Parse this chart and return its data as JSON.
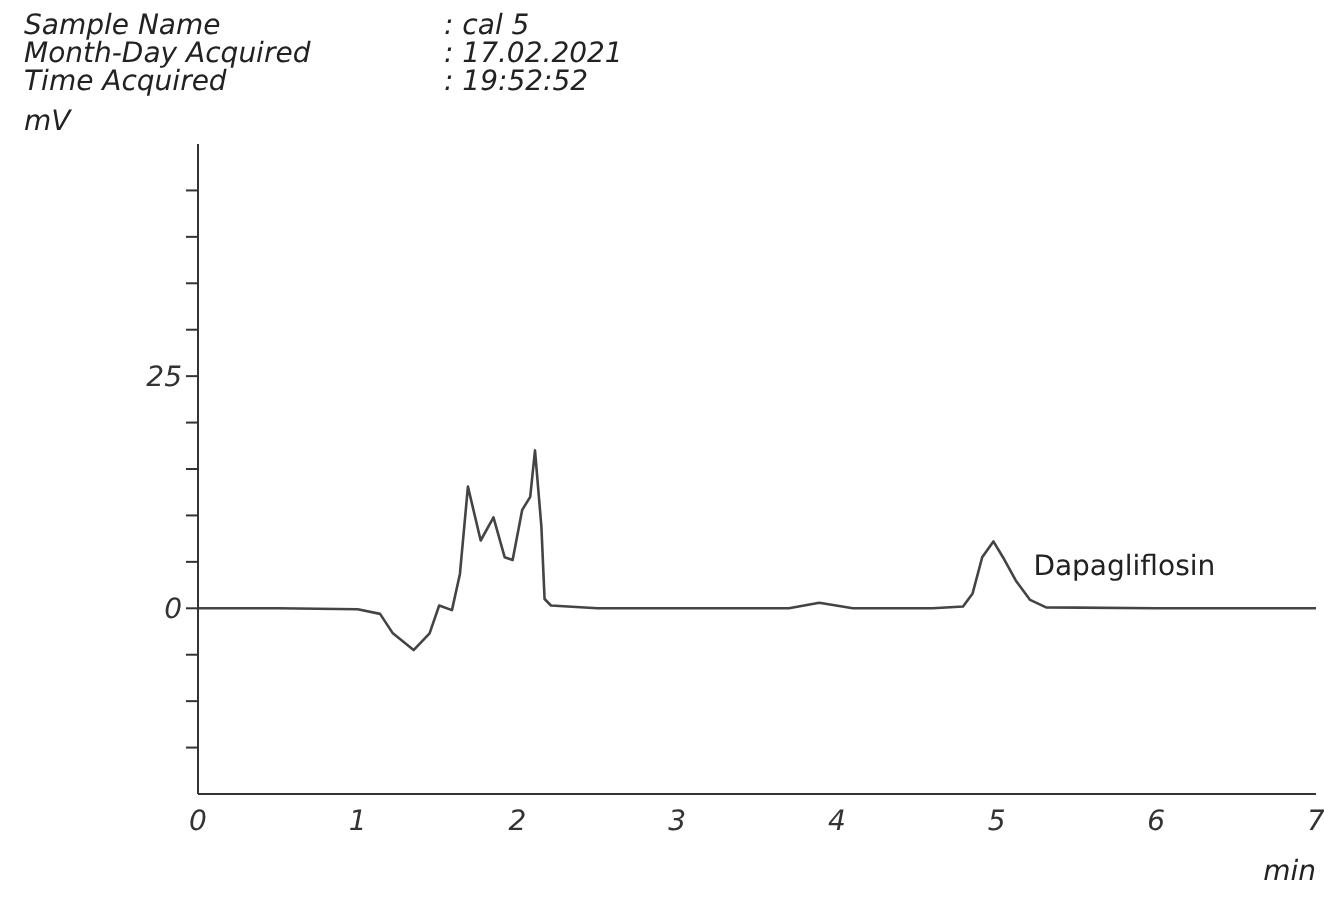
{
  "chart_data": {
    "type": "line",
    "annotations": [
      "Sample Name",
      ": cal 5",
      "Month-Day Acquired",
      ": 17.02.2021",
      "Time Acquired",
      ": 19:52:52",
      {
        "text": "Dapagliflosin",
        "x": 4.98,
        "y": 7.2
      }
    ],
    "xlabel": "min",
    "ylabel": "mV",
    "x": [
      0,
      0.5,
      1.0,
      1.14,
      1.22,
      1.35,
      1.45,
      1.51,
      1.59,
      1.64,
      1.69,
      1.77,
      1.85,
      1.92,
      1.97,
      2.03,
      2.08,
      2.11,
      2.15,
      2.17,
      2.21,
      2.5,
      3.0,
      3.7,
      3.89,
      4.1,
      4.6,
      4.79,
      4.85,
      4.91,
      4.98,
      5.04,
      5.12,
      5.21,
      5.31,
      6.0,
      7.0
    ],
    "series": [
      {
        "color": "#444444",
        "values": [
          0,
          0,
          -0.1,
          -0.6,
          -2.7,
          -4.5,
          -2.7,
          0.3,
          -0.2,
          3.7,
          13.1,
          7.3,
          9.8,
          5.5,
          5.2,
          10.6,
          12.0,
          17.0,
          8.8,
          1.0,
          0.3,
          0,
          0,
          0,
          0.6,
          0,
          0,
          0.2,
          1.6,
          5.5,
          7.2,
          5.5,
          3.0,
          0.9,
          0.1,
          0,
          0
        ]
      }
    ],
    "xlim": [
      0,
      7
    ],
    "xticks": [
      0,
      1,
      2,
      3,
      4,
      5,
      6,
      7
    ],
    "ylim": [
      -20,
      50
    ],
    "yticks": [
      {
        "value": -15,
        "label": null
      },
      {
        "value": -10,
        "label": null
      },
      {
        "value": -5,
        "label": null
      },
      0,
      {
        "value": 5,
        "label": null
      },
      {
        "value": 10,
        "label": null
      },
      {
        "value": 15,
        "label": null
      },
      {
        "value": 20,
        "label": null
      },
      25,
      {
        "value": 30,
        "label": null
      },
      {
        "value": 35,
        "label": null
      },
      {
        "value": 40,
        "label": null
      },
      {
        "value": 45,
        "label": null
      }
    ],
    "grid": false,
    "marker": "none",
    "line_style": "solid"
  }
}
